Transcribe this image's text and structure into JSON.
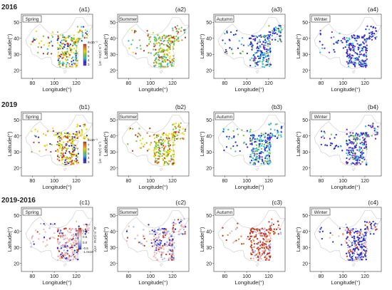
{
  "row_titles": [
    "2016",
    "2019",
    "2019-2016"
  ],
  "panel_labels": [
    "(a1)",
    "(a2)",
    "(a3)",
    "(a4)",
    "(b1)",
    "(b2)",
    "(b3)",
    "(b4)",
    "(c1)",
    "(c2)",
    "(c3)",
    "(c4)"
  ],
  "seasons": [
    "Spring",
    "Summer",
    "Autumn",
    "Winter"
  ],
  "axis": {
    "xlabel": "Longitude(°)",
    "ylabel": "Latitude(°)",
    "x_ticks": [
      "80",
      "100",
      "120"
    ],
    "y_ticks": [
      "20",
      "30",
      "40",
      "50"
    ]
  },
  "colorbar_ab": {
    "title": "I_m (1/ms ∙ m²)",
    "top_label": "8x10⁻³",
    "tick_labels": [
      "7",
      "6",
      "5",
      "4",
      "3"
    ]
  },
  "colorbar_c": {
    "title": "ΔI_m (1/ms ∙ m²)",
    "tick_labels": [
      "1.0",
      "0.5",
      "0.0",
      "-0.5"
    ],
    "bottom_label": "-1.0x10⁻³"
  },
  "colors": {
    "red": "#c0392b",
    "orange": "#e67e22",
    "yellow": "#f1d900",
    "green": "#7cc242",
    "cyan": "#2bc2d8",
    "blue": "#2233cc",
    "purple": "#7b2cc9",
    "light_red": "#f2b5ae",
    "light_blue": "#a9b4f0"
  },
  "chart_data": [
    {
      "type": "scatter",
      "panel": "(a1)",
      "row": "2016",
      "season": "Spring",
      "xlim": [
        70,
        135
      ],
      "ylim": [
        15,
        55
      ],
      "xlabel": "Longitude(°)",
      "ylabel": "Latitude(°)",
      "dominant_color": "green-yellow"
    },
    {
      "type": "scatter",
      "panel": "(a2)",
      "row": "2016",
      "season": "Summer",
      "xlim": [
        70,
        135
      ],
      "ylim": [
        15,
        55
      ],
      "xlabel": "Longitude(°)",
      "ylabel": "Latitude(°)",
      "dominant_color": "green"
    },
    {
      "type": "scatter",
      "panel": "(a3)",
      "row": "2016",
      "season": "Autumn",
      "xlim": [
        70,
        135
      ],
      "ylim": [
        15,
        55
      ],
      "xlabel": "Longitude(°)",
      "ylabel": "Latitude(°)",
      "dominant_color": "blue-cyan"
    },
    {
      "type": "scatter",
      "panel": "(a4)",
      "row": "2016",
      "season": "Winter",
      "xlim": [
        70,
        135
      ],
      "ylim": [
        15,
        55
      ],
      "xlabel": "Longitude(°)",
      "ylabel": "Latitude(°)",
      "dominant_color": "blue-purple"
    },
    {
      "type": "scatter",
      "panel": "(b1)",
      "row": "2019",
      "season": "Spring",
      "xlim": [
        70,
        135
      ],
      "ylim": [
        15,
        55
      ],
      "xlabel": "Longitude(°)",
      "ylabel": "Latitude(°)",
      "dominant_color": "yellow-orange"
    },
    {
      "type": "scatter",
      "panel": "(b2)",
      "row": "2019",
      "season": "Summer",
      "xlim": [
        70,
        135
      ],
      "ylim": [
        15,
        55
      ],
      "xlabel": "Longitude(°)",
      "ylabel": "Latitude(°)",
      "dominant_color": "green-yellow"
    },
    {
      "type": "scatter",
      "panel": "(b3)",
      "row": "2019",
      "season": "Autumn",
      "xlim": [
        70,
        135
      ],
      "ylim": [
        15,
        55
      ],
      "xlabel": "Longitude(°)",
      "ylabel": "Latitude(°)",
      "dominant_color": "cyan-blue"
    },
    {
      "type": "scatter",
      "panel": "(b4)",
      "row": "2019",
      "season": "Winter",
      "xlim": [
        70,
        135
      ],
      "ylim": [
        15,
        55
      ],
      "xlabel": "Longitude(°)",
      "ylabel": "Latitude(°)",
      "dominant_color": "blue-purple"
    },
    {
      "type": "scatter",
      "panel": "(c1)",
      "row": "2019-2016",
      "season": "Spring",
      "xlim": [
        70,
        135
      ],
      "ylim": [
        15,
        55
      ],
      "xlabel": "Longitude(°)",
      "ylabel": "Latitude(°)",
      "dominant_color": "light red"
    },
    {
      "type": "scatter",
      "panel": "(c2)",
      "row": "2019-2016",
      "season": "Summer",
      "xlim": [
        70,
        135
      ],
      "ylim": [
        15,
        55
      ],
      "xlabel": "Longitude(°)",
      "ylabel": "Latitude(°)",
      "dominant_color": "mixed red-blue"
    },
    {
      "type": "scatter",
      "panel": "(c3)",
      "row": "2019-2016",
      "season": "Autumn",
      "xlim": [
        70,
        135
      ],
      "ylim": [
        15,
        55
      ],
      "xlabel": "Longitude(°)",
      "ylabel": "Latitude(°)",
      "dominant_color": "red"
    },
    {
      "type": "scatter",
      "panel": "(c4)",
      "row": "2019-2016",
      "season": "Winter",
      "xlim": [
        70,
        135
      ],
      "ylim": [
        15,
        55
      ],
      "xlabel": "Longitude(°)",
      "ylabel": "Latitude(°)",
      "dominant_color": "blue-red"
    }
  ]
}
